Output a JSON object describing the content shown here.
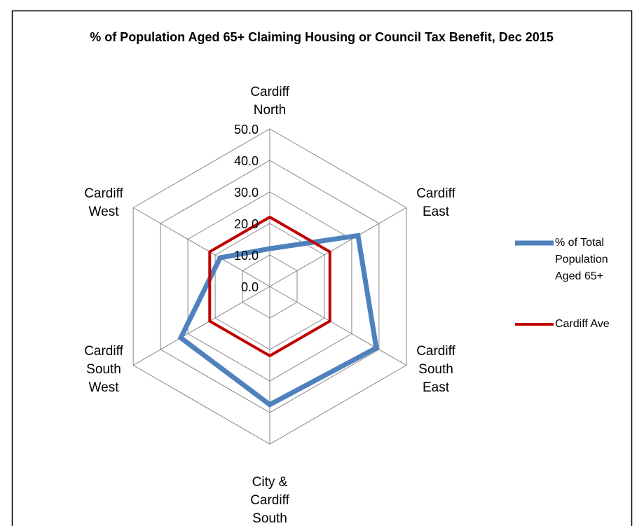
{
  "chart_data": {
    "type": "radar",
    "title": "% of Population Aged 65+ Claiming Housing or Council Tax Benefit, Dec 2015",
    "categories": [
      "Cardiff North",
      "Cardiff East",
      "Cardiff South East",
      "City & Cardiff South",
      "Cardiff South West",
      "Cardiff West"
    ],
    "series": [
      {
        "name": "% of Total Population Aged 65+",
        "color": "#4f81bd",
        "values": [
          12,
          32.3,
          39,
          37.5,
          32.6,
          18.2
        ]
      },
      {
        "name": "Cardiff Ave",
        "color": "#c00000",
        "values": [
          22,
          22,
          22,
          22,
          22,
          22
        ]
      }
    ],
    "ylim": [
      0,
      50
    ],
    "yticks": [
      {
        "value": 0,
        "label": "0.0"
      },
      {
        "value": 10,
        "label": "10.0"
      },
      {
        "value": 20,
        "label": "20.0"
      },
      {
        "value": 30,
        "label": "30.0"
      },
      {
        "value": 40,
        "label": "40.0"
      },
      {
        "value": 50,
        "label": "50.0"
      }
    ],
    "grid": true,
    "legend": "right"
  }
}
